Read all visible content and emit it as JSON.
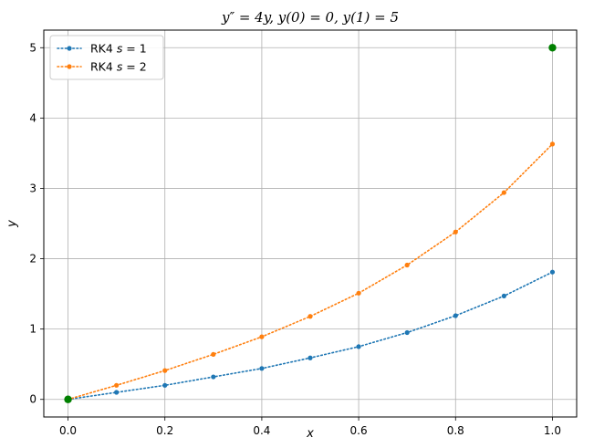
{
  "chart_data": {
    "type": "line",
    "title": "y″ = 4y, y(0) = 0, y(1) = 5",
    "xlabel": "x",
    "ylabel": "y",
    "xlim": [
      -0.05,
      1.05
    ],
    "ylim": [
      -0.25,
      5.25
    ],
    "xticks": [
      0.0,
      0.2,
      0.4,
      0.6,
      0.8,
      1.0
    ],
    "xtick_labels": [
      "0.0",
      "0.2",
      "0.4",
      "0.6",
      "0.8",
      "1.0"
    ],
    "yticks": [
      0,
      1,
      2,
      3,
      4,
      5
    ],
    "ytick_labels": [
      "0",
      "1",
      "2",
      "3",
      "4",
      "5"
    ],
    "grid": true,
    "legend_position": "top-left",
    "x": [
      0.0,
      0.1,
      0.2,
      0.3,
      0.4,
      0.5,
      0.6,
      0.7,
      0.8,
      0.9,
      1.0
    ],
    "series": [
      {
        "name": "RK4 s = 1",
        "legend_label": {
          "prefix": "RK4 ",
          "var": "s",
          "suffix": " = 1"
        },
        "color": "#1f77b4",
        "style": "dotted",
        "values": [
          0.0,
          0.1,
          0.2,
          0.32,
          0.44,
          0.59,
          0.75,
          0.95,
          1.19,
          1.47,
          1.81
        ]
      },
      {
        "name": "RK4 s = 2",
        "legend_label": {
          "prefix": "RK4 ",
          "var": "s",
          "suffix": " = 2"
        },
        "color": "#ff7f0e",
        "style": "dotted",
        "values": [
          0.0,
          0.2,
          0.41,
          0.64,
          0.89,
          1.18,
          1.51,
          1.91,
          2.38,
          2.94,
          3.63
        ]
      }
    ],
    "boundary_points": [
      {
        "x": 0.0,
        "y": 0.0,
        "color": "#008000"
      },
      {
        "x": 1.0,
        "y": 5.0,
        "color": "#008000"
      }
    ]
  }
}
